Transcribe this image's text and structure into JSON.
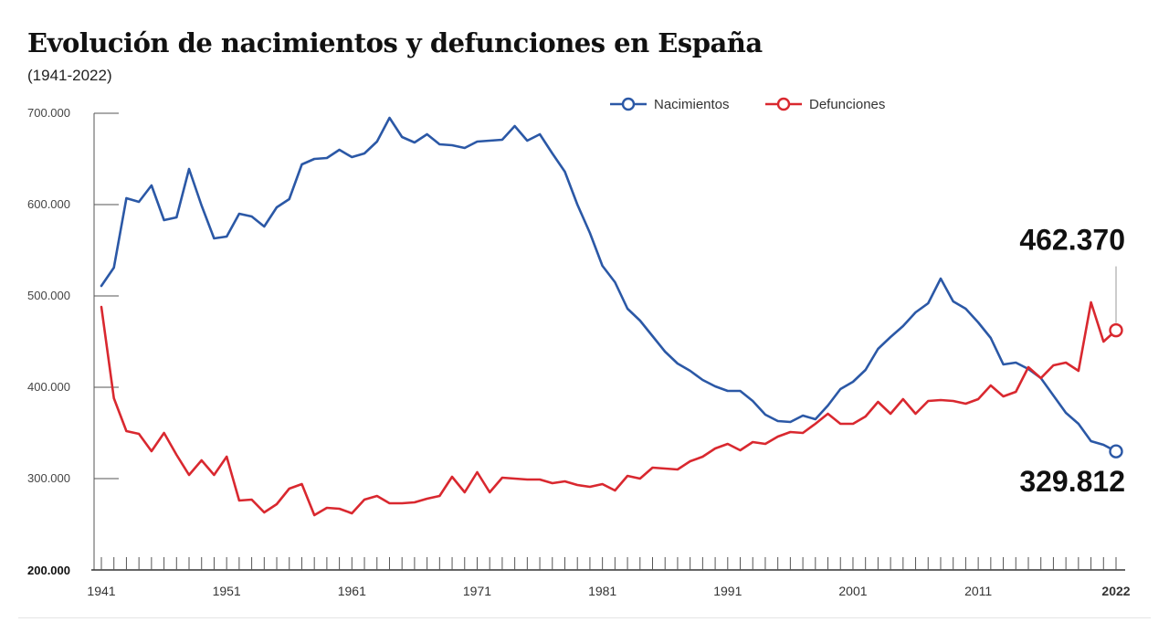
{
  "chart_data": {
    "type": "line",
    "title": "Evolución de nacimientos y defunciones en España",
    "subtitle": "(1941-2022)",
    "xlabel": "",
    "ylabel": "",
    "xlim": [
      1941,
      2022
    ],
    "ylim": [
      200000,
      700000
    ],
    "grid": false,
    "legend_position": "top-right",
    "y_ticks": [
      {
        "value": 700000,
        "label": "700.000"
      },
      {
        "value": 600000,
        "label": "600.000"
      },
      {
        "value": 500000,
        "label": "500.000"
      },
      {
        "value": 400000,
        "label": "400.000"
      },
      {
        "value": 300000,
        "label": "300.000"
      },
      {
        "value": 200000,
        "label": "200.000"
      }
    ],
    "x_tick_labels": [
      {
        "year": 1941,
        "label": "1941",
        "bold": false
      },
      {
        "year": 1951,
        "label": "1951",
        "bold": false
      },
      {
        "year": 1961,
        "label": "1961",
        "bold": false
      },
      {
        "year": 1971,
        "label": "1971",
        "bold": false
      },
      {
        "year": 1981,
        "label": "1981",
        "bold": false
      },
      {
        "year": 1991,
        "label": "1991",
        "bold": false
      },
      {
        "year": 2001,
        "label": "2001",
        "bold": false
      },
      {
        "year": 2011,
        "label": "2011",
        "bold": false
      },
      {
        "year": 2022,
        "label": "2022",
        "bold": true
      }
    ],
    "x": [
      1941,
      1942,
      1943,
      1944,
      1945,
      1946,
      1947,
      1948,
      1949,
      1950,
      1951,
      1952,
      1953,
      1954,
      1955,
      1956,
      1957,
      1958,
      1959,
      1960,
      1961,
      1962,
      1963,
      1964,
      1965,
      1966,
      1967,
      1968,
      1969,
      1970,
      1971,
      1972,
      1973,
      1974,
      1975,
      1976,
      1977,
      1978,
      1979,
      1980,
      1981,
      1982,
      1983,
      1984,
      1985,
      1986,
      1987,
      1988,
      1989,
      1990,
      1991,
      1992,
      1993,
      1994,
      1995,
      1996,
      1997,
      1998,
      1999,
      2000,
      2001,
      2002,
      2003,
      2004,
      2005,
      2006,
      2007,
      2008,
      2009,
      2010,
      2011,
      2012,
      2013,
      2014,
      2015,
      2016,
      2017,
      2018,
      2019,
      2020,
      2021,
      2022
    ],
    "series": [
      {
        "name": "Nacimientos",
        "color": "#2b58a6",
        "values": [
          511000,
          531000,
          607000,
          603000,
          621000,
          583000,
          586000,
          639000,
          599000,
          563000,
          565000,
          590000,
          587000,
          576000,
          597000,
          606000,
          644000,
          650000,
          651000,
          660000,
          652000,
          656000,
          669000,
          695000,
          674000,
          668000,
          677000,
          666000,
          665000,
          662000,
          669000,
          670000,
          671000,
          686000,
          670000,
          677000,
          656000,
          636000,
          600000,
          569000,
          533000,
          515000,
          486000,
          473000,
          456000,
          439000,
          426000,
          418000,
          408000,
          401000,
          396000,
          396000,
          385000,
          370000,
          363000,
          362000,
          369000,
          365000,
          380000,
          398000,
          406000,
          419000,
          442000,
          455000,
          467000,
          482000,
          492000,
          519000,
          494000,
          486000,
          471000,
          454000,
          425000,
          427000,
          420000,
          410000,
          391000,
          372000,
          360000,
          341000,
          337000,
          329812
        ]
      },
      {
        "name": "Defunciones",
        "color": "#d9282f",
        "values": [
          488000,
          388000,
          352000,
          349000,
          330000,
          350000,
          326000,
          304000,
          320000,
          304000,
          324000,
          276000,
          277000,
          263000,
          272000,
          289000,
          294000,
          260000,
          268000,
          267000,
          262000,
          277000,
          281000,
          273000,
          273000,
          274000,
          278000,
          281000,
          302000,
          285000,
          307000,
          285000,
          301000,
          300000,
          299000,
          299000,
          295000,
          297000,
          293000,
          291000,
          294000,
          287000,
          303000,
          300000,
          312000,
          311000,
          310000,
          319000,
          324000,
          333000,
          338000,
          331000,
          340000,
          338000,
          346000,
          351000,
          350000,
          360000,
          371000,
          360000,
          360000,
          368000,
          384000,
          371000,
          387000,
          371000,
          385000,
          386000,
          385000,
          382000,
          387000,
          402000,
          390000,
          395000,
          422000,
          410000,
          424000,
          427000,
          418000,
          493000,
          450000,
          462370
        ]
      }
    ],
    "annotations": [
      {
        "series": "Defunciones",
        "year": 2022,
        "value": 462370,
        "label": "462.370"
      },
      {
        "series": "Nacimientos",
        "year": 2022,
        "value": 329812,
        "label": "329.812"
      }
    ]
  }
}
